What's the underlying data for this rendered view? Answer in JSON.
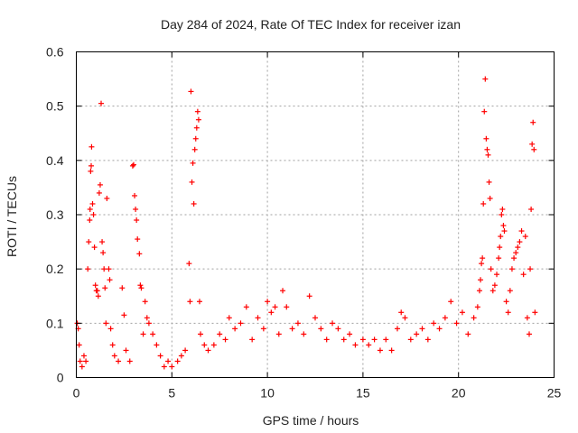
{
  "chart_data": {
    "type": "scatter",
    "title": "Day 284 of 2024, Rate Of TEC Index for receiver izan",
    "xlabel": "GPS time / hours",
    "ylabel": "ROTI / TECUs",
    "xlim": [
      0,
      25
    ],
    "ylim": [
      0,
      0.6
    ],
    "x_ticks": [
      "0",
      "5",
      "10",
      "15",
      "20",
      "25"
    ],
    "y_ticks": [
      "0",
      "0.1",
      "0.2",
      "0.3",
      "0.4",
      "0.5",
      "0.6"
    ],
    "grid": true,
    "marker": "+",
    "color": "#ff0000",
    "series": [
      {
        "name": "ROTI",
        "points": [
          [
            0.05,
            0.1
          ],
          [
            0.1,
            0.09
          ],
          [
            0.15,
            0.06
          ],
          [
            0.2,
            0.03
          ],
          [
            0.3,
            0.02
          ],
          [
            0.4,
            0.04
          ],
          [
            0.5,
            0.03
          ],
          [
            0.6,
            0.2
          ],
          [
            0.65,
            0.25
          ],
          [
            0.7,
            0.29
          ],
          [
            0.72,
            0.31
          ],
          [
            0.75,
            0.38
          ],
          [
            0.78,
            0.39
          ],
          [
            0.8,
            0.425
          ],
          [
            0.85,
            0.32
          ],
          [
            0.9,
            0.3
          ],
          [
            0.95,
            0.24
          ],
          [
            1.0,
            0.17
          ],
          [
            1.05,
            0.16
          ],
          [
            1.1,
            0.16
          ],
          [
            1.15,
            0.15
          ],
          [
            1.2,
            0.34
          ],
          [
            1.25,
            0.355
          ],
          [
            1.3,
            0.505
          ],
          [
            1.35,
            0.25
          ],
          [
            1.4,
            0.23
          ],
          [
            1.45,
            0.2
          ],
          [
            1.5,
            0.165
          ],
          [
            1.55,
            0.1
          ],
          [
            1.6,
            0.33
          ],
          [
            1.7,
            0.2
          ],
          [
            1.75,
            0.18
          ],
          [
            1.8,
            0.09
          ],
          [
            1.9,
            0.06
          ],
          [
            2.0,
            0.04
          ],
          [
            2.2,
            0.03
          ],
          [
            2.4,
            0.165
          ],
          [
            2.5,
            0.115
          ],
          [
            2.6,
            0.05
          ],
          [
            2.8,
            0.03
          ],
          [
            2.95,
            0.39
          ],
          [
            3.0,
            0.392
          ],
          [
            3.05,
            0.335
          ],
          [
            3.1,
            0.31
          ],
          [
            3.15,
            0.29
          ],
          [
            3.2,
            0.255
          ],
          [
            3.3,
            0.228
          ],
          [
            3.35,
            0.17
          ],
          [
            3.4,
            0.165
          ],
          [
            3.5,
            0.08
          ],
          [
            3.6,
            0.14
          ],
          [
            3.7,
            0.11
          ],
          [
            3.8,
            0.1
          ],
          [
            4.0,
            0.08
          ],
          [
            4.2,
            0.06
          ],
          [
            4.4,
            0.04
          ],
          [
            4.6,
            0.02
          ],
          [
            4.8,
            0.03
          ],
          [
            5.0,
            0.02
          ],
          [
            5.3,
            0.03
          ],
          [
            5.5,
            0.04
          ],
          [
            5.7,
            0.05
          ],
          [
            5.9,
            0.21
          ],
          [
            5.95,
            0.14
          ],
          [
            6.0,
            0.527
          ],
          [
            6.05,
            0.36
          ],
          [
            6.1,
            0.395
          ],
          [
            6.15,
            0.32
          ],
          [
            6.2,
            0.42
          ],
          [
            6.25,
            0.44
          ],
          [
            6.3,
            0.46
          ],
          [
            6.35,
            0.49
          ],
          [
            6.4,
            0.475
          ],
          [
            6.45,
            0.14
          ],
          [
            6.5,
            0.08
          ],
          [
            6.7,
            0.06
          ],
          [
            6.9,
            0.05
          ],
          [
            7.2,
            0.06
          ],
          [
            7.5,
            0.08
          ],
          [
            7.8,
            0.07
          ],
          [
            8.0,
            0.11
          ],
          [
            8.3,
            0.09
          ],
          [
            8.6,
            0.1
          ],
          [
            8.9,
            0.13
          ],
          [
            9.2,
            0.07
          ],
          [
            9.5,
            0.11
          ],
          [
            9.8,
            0.09
          ],
          [
            10.0,
            0.14
          ],
          [
            10.2,
            0.12
          ],
          [
            10.4,
            0.13
          ],
          [
            10.6,
            0.08
          ],
          [
            10.8,
            0.16
          ],
          [
            11.0,
            0.13
          ],
          [
            11.3,
            0.09
          ],
          [
            11.6,
            0.1
          ],
          [
            11.9,
            0.08
          ],
          [
            12.2,
            0.15
          ],
          [
            12.5,
            0.11
          ],
          [
            12.8,
            0.09
          ],
          [
            13.1,
            0.07
          ],
          [
            13.4,
            0.1
          ],
          [
            13.7,
            0.09
          ],
          [
            14.0,
            0.07
          ],
          [
            14.3,
            0.08
          ],
          [
            14.6,
            0.06
          ],
          [
            15.0,
            0.07
          ],
          [
            15.3,
            0.06
          ],
          [
            15.6,
            0.07
          ],
          [
            15.9,
            0.05
          ],
          [
            16.2,
            0.07
          ],
          [
            16.5,
            0.05
          ],
          [
            16.8,
            0.09
          ],
          [
            17.0,
            0.12
          ],
          [
            17.2,
            0.11
          ],
          [
            17.5,
            0.07
          ],
          [
            17.8,
            0.08
          ],
          [
            18.1,
            0.09
          ],
          [
            18.4,
            0.07
          ],
          [
            18.7,
            0.1
          ],
          [
            19.0,
            0.09
          ],
          [
            19.3,
            0.11
          ],
          [
            19.6,
            0.14
          ],
          [
            19.9,
            0.1
          ],
          [
            20.2,
            0.12
          ],
          [
            20.5,
            0.08
          ],
          [
            20.8,
            0.11
          ],
          [
            21.0,
            0.13
          ],
          [
            21.1,
            0.16
          ],
          [
            21.15,
            0.18
          ],
          [
            21.2,
            0.21
          ],
          [
            21.25,
            0.22
          ],
          [
            21.3,
            0.32
          ],
          [
            21.35,
            0.49
          ],
          [
            21.4,
            0.55
          ],
          [
            21.45,
            0.44
          ],
          [
            21.5,
            0.42
          ],
          [
            21.55,
            0.41
          ],
          [
            21.6,
            0.36
          ],
          [
            21.65,
            0.33
          ],
          [
            21.7,
            0.2
          ],
          [
            21.8,
            0.16
          ],
          [
            21.9,
            0.17
          ],
          [
            22.0,
            0.19
          ],
          [
            22.1,
            0.22
          ],
          [
            22.15,
            0.24
          ],
          [
            22.2,
            0.26
          ],
          [
            22.25,
            0.3
          ],
          [
            22.3,
            0.31
          ],
          [
            22.35,
            0.28
          ],
          [
            22.4,
            0.27
          ],
          [
            22.5,
            0.14
          ],
          [
            22.6,
            0.12
          ],
          [
            22.7,
            0.16
          ],
          [
            22.8,
            0.2
          ],
          [
            22.9,
            0.22
          ],
          [
            23.0,
            0.23
          ],
          [
            23.1,
            0.24
          ],
          [
            23.2,
            0.25
          ],
          [
            23.3,
            0.27
          ],
          [
            23.4,
            0.19
          ],
          [
            23.5,
            0.26
          ],
          [
            23.6,
            0.11
          ],
          [
            23.7,
            0.08
          ],
          [
            23.75,
            0.2
          ],
          [
            23.8,
            0.31
          ],
          [
            23.85,
            0.43
          ],
          [
            23.9,
            0.47
          ],
          [
            23.95,
            0.42
          ],
          [
            24.0,
            0.12
          ]
        ]
      }
    ]
  }
}
